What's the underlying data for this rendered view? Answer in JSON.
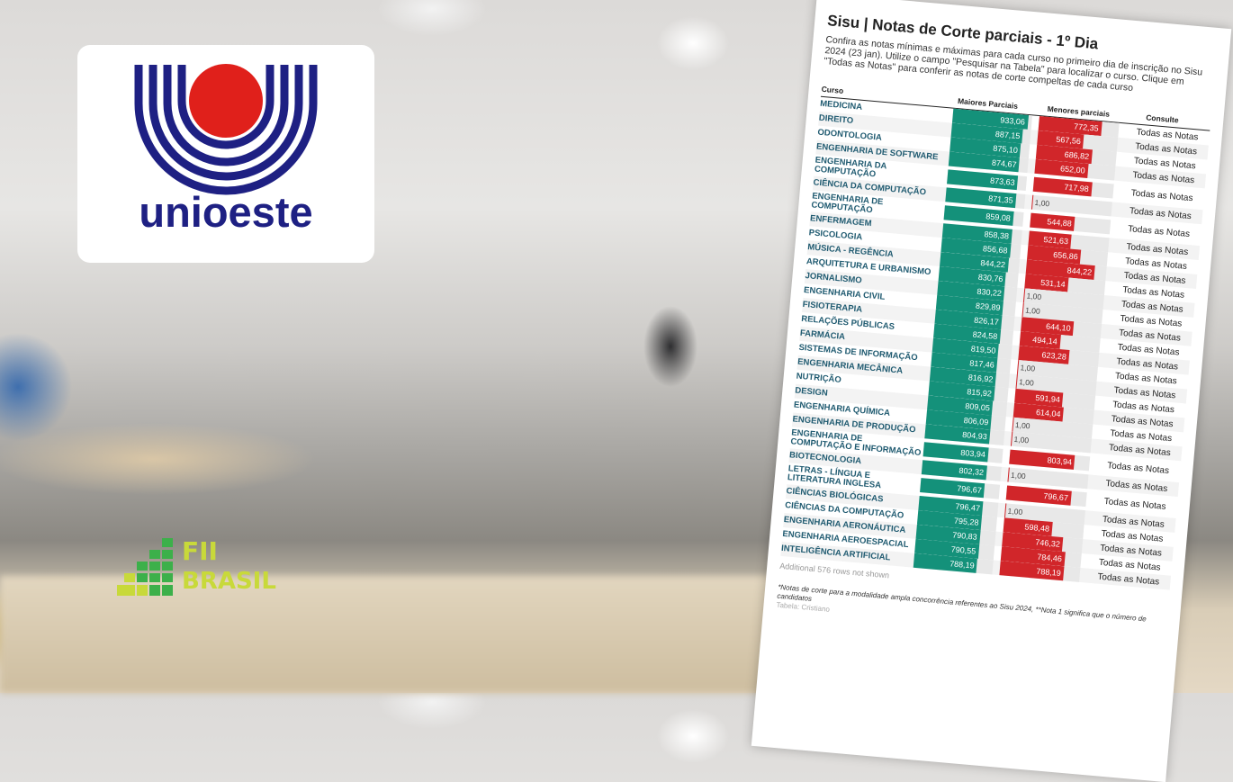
{
  "logo": {
    "text": "unioeste",
    "colors": {
      "blue": "#1e2083",
      "red": "#e0201b"
    }
  },
  "watermark": {
    "line1": "FII",
    "line2": "BRASIL",
    "colors": {
      "green": "#3cb04a",
      "yellow": "#c8d93a"
    }
  },
  "table": {
    "title": "Sisu | Notas de Corte parciais - 1º Dia",
    "description": "Confira as notas mínimas e máximas para cada curso no primeiro dia de inscrição no Sisu 2024 (23 jan). Utilize o campo \"Pesquisar na Tabela\" para localizar o curso. Clique em \"Todas as Notas\" para conferir as notas de corte compeltas de cada curso",
    "headers": {
      "course": "Curso",
      "max": "Maiores Parciais",
      "min": "Menores parciais",
      "consult": "Consulte"
    },
    "colors": {
      "max_bar": "#14917a",
      "min_bar": "#d1262a"
    },
    "rows": [
      {
        "course": "MEDICINA",
        "max": "933,06",
        "min": "772,35",
        "link": "Todas as Notas"
      },
      {
        "course": "DIREITO",
        "max": "887,15",
        "min": "567,56",
        "link": "Todas as Notas"
      },
      {
        "course": "ODONTOLOGIA",
        "max": "875,10",
        "min": "686,82",
        "link": "Todas as Notas"
      },
      {
        "course": "ENGENHARIA DE SOFTWARE",
        "max": "874,67",
        "min": "652,00",
        "link": "Todas as Notas"
      },
      {
        "course": "ENGENHARIA DA COMPUTAÇÃO",
        "max": "873,63",
        "min": "717,98",
        "link": "Todas as Notas"
      },
      {
        "course": "CIÊNCIA DA COMPUTAÇÃO",
        "max": "871,35",
        "min": "1,00",
        "link": "Todas as Notas"
      },
      {
        "course": "ENGENHARIA DE COMPUTAÇÃO",
        "max": "859,08",
        "min": "544,88",
        "link": "Todas as Notas"
      },
      {
        "course": "ENFERMAGEM",
        "max": "858,38",
        "min": "521,63",
        "link": "Todas as Notas"
      },
      {
        "course": "PSICOLOGIA",
        "max": "856,68",
        "min": "656,86",
        "link": "Todas as Notas"
      },
      {
        "course": "MÚSICA - REGÊNCIA",
        "max": "844,22",
        "min": "844,22",
        "link": "Todas as Notas"
      },
      {
        "course": "ARQUITETURA E URBANISMO",
        "max": "830,76",
        "min": "531,14",
        "link": "Todas as Notas"
      },
      {
        "course": "JORNALISMO",
        "max": "830,22",
        "min": "1,00",
        "link": "Todas as Notas"
      },
      {
        "course": "ENGENHARIA CIVIL",
        "max": "829,89",
        "min": "1,00",
        "link": "Todas as Notas"
      },
      {
        "course": "FISIOTERAPIA",
        "max": "826,17",
        "min": "644,10",
        "link": "Todas as Notas"
      },
      {
        "course": "RELAÇÕES PÚBLICAS",
        "max": "824,58",
        "min": "494,14",
        "link": "Todas as Notas"
      },
      {
        "course": "FARMÁCIA",
        "max": "819,50",
        "min": "623,28",
        "link": "Todas as Notas"
      },
      {
        "course": "SISTEMAS DE INFORMAÇÃO",
        "max": "817,46",
        "min": "1,00",
        "link": "Todas as Notas"
      },
      {
        "course": "ENGENHARIA MECÂNICA",
        "max": "816,92",
        "min": "1,00",
        "link": "Todas as Notas"
      },
      {
        "course": "NUTRIÇÃO",
        "max": "815,92",
        "min": "591,94",
        "link": "Todas as Notas"
      },
      {
        "course": "DESIGN",
        "max": "809,05",
        "min": "614,04",
        "link": "Todas as Notas"
      },
      {
        "course": "ENGENHARIA QUÍMICA",
        "max": "806,09",
        "min": "1,00",
        "link": "Todas as Notas"
      },
      {
        "course": "ENGENHARIA DE PRODUÇÃO",
        "max": "804,93",
        "min": "1,00",
        "link": "Todas as Notas"
      },
      {
        "course": "ENGENHARIA DE COMPUTAÇÃO E INFORMAÇÃO",
        "max": "803,94",
        "min": "803,94",
        "link": "Todas as Notas"
      },
      {
        "course": "BIOTECNOLOGIA",
        "max": "802,32",
        "min": "1,00",
        "link": "Todas as Notas"
      },
      {
        "course": "LETRAS - LÍNGUA E LITERATURA INGLESA",
        "max": "796,67",
        "min": "796,67",
        "link": "Todas as Notas"
      },
      {
        "course": "CIÊNCIAS BIOLÓGICAS",
        "max": "796,47",
        "min": "1,00",
        "link": "Todas as Notas"
      },
      {
        "course": "CIÊNCIAS DA COMPUTAÇÃO",
        "max": "795,28",
        "min": "598,48",
        "link": "Todas as Notas"
      },
      {
        "course": "ENGENHARIA AERONÁUTICA",
        "max": "790,83",
        "min": "746,32",
        "link": "Todas as Notas"
      },
      {
        "course": "ENGENHARIA AEROESPACIAL",
        "max": "790,55",
        "min": "784,46",
        "link": "Todas as Notas"
      },
      {
        "course": "INTELIGÊNCIA ARTIFICIAL",
        "max": "788,19",
        "min": "788,19",
        "link": "Todas as Notas"
      }
    ],
    "more_rows": "Additional 576 rows not shown",
    "footnote": "*Notas de corte para a modalidade ampla concorrência referentes ao Sisu 2024, **Nota 1 significa que o número de candidatos",
    "credit": "Tabela: Cristiano"
  }
}
